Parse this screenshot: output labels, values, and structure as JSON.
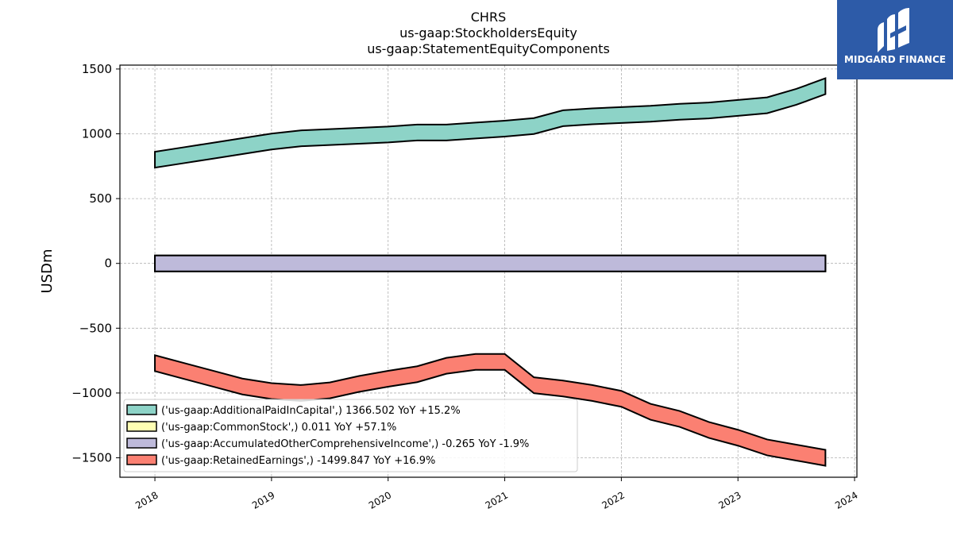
{
  "chart_data": {
    "type": "line",
    "title_lines": [
      "CHRS",
      "us-gaap:StockholdersEquity",
      "us-gaap:StatementEquityComponents"
    ],
    "ylabel": "USDm",
    "ylim": [
      -1650,
      1530
    ],
    "xlim": [
      2017.7,
      2024.02
    ],
    "yticks": [
      1500,
      1000,
      500,
      0,
      -500,
      -1000,
      -1500
    ],
    "ytick_labels": [
      "1500",
      "1000",
      "500",
      "0",
      "−500",
      "−1000",
      "−1500"
    ],
    "xticks": [
      2018,
      2019,
      2020,
      2021,
      2022,
      2023,
      2024
    ],
    "xtick_labels": [
      "2018",
      "2019",
      "2020",
      "2021",
      "2022",
      "2023",
      "2024"
    ],
    "grid": true,
    "legend_position": "lower-left",
    "band_width": 20,
    "series": [
      {
        "name": "('us-gaap:AdditionalPaidInCapital',) 1366.502 YoY +15.2%",
        "color": "#8dd3c7",
        "x": [
          2018.0,
          2018.25,
          2018.5,
          2018.75,
          2019.0,
          2019.25,
          2019.5,
          2019.75,
          2020.0,
          2020.25,
          2020.5,
          2020.75,
          2021.0,
          2021.25,
          2021.5,
          2021.75,
          2022.0,
          2022.25,
          2022.5,
          2022.75,
          2023.0,
          2023.25,
          2023.5,
          2023.75
        ],
        "y": [
          800,
          835,
          870,
          905,
          940,
          965,
          975,
          985,
          995,
          1010,
          1010,
          1025,
          1040,
          1060,
          1120,
          1135,
          1145,
          1155,
          1170,
          1180,
          1200,
          1220,
          1285,
          1367
        ]
      },
      {
        "name": "('us-gaap:CommonStock',) 0.011 YoY +57.1%",
        "color": "#ffffb3",
        "x": [
          2018.0,
          2023.75
        ],
        "y": [
          0.01,
          0.011
        ]
      },
      {
        "name": "('us-gaap:AccumulatedOtherComprehensiveIncome',) -0.265 YoY -1.9%",
        "color": "#bebada",
        "x": [
          2018.0,
          2023.75
        ],
        "y": [
          -0.3,
          -0.265
        ]
      },
      {
        "name": "('us-gaap:RetainedEarnings',) -1499.847 YoY +16.9%",
        "color": "#fb8072",
        "x": [
          2018.0,
          2018.25,
          2018.5,
          2018.75,
          2019.0,
          2019.25,
          2019.5,
          2019.75,
          2020.0,
          2020.25,
          2020.5,
          2020.75,
          2021.0,
          2021.25,
          2021.5,
          2021.75,
          2022.0,
          2022.25,
          2022.5,
          2022.75,
          2023.0,
          2023.25,
          2023.5,
          2023.75
        ],
        "y": [
          -770,
          -830,
          -890,
          -950,
          -985,
          -1000,
          -980,
          -930,
          -890,
          -855,
          -790,
          -760,
          -760,
          -940,
          -965,
          -1000,
          -1045,
          -1145,
          -1200,
          -1285,
          -1345,
          -1420,
          -1460,
          -1500
        ]
      }
    ]
  },
  "watermark": {
    "brand": "MIDGARD FINANCE",
    "color": "#2d5ba8"
  }
}
